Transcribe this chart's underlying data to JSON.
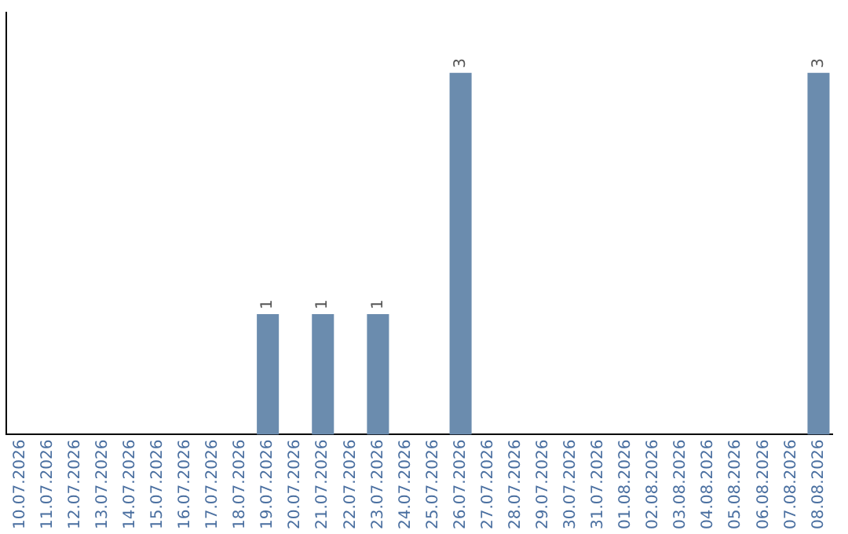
{
  "chart_data": {
    "type": "bar",
    "categories": [
      "10.07.2026",
      "11.07.2026",
      "12.07.2026",
      "13.07.2026",
      "14.07.2026",
      "15.07.2026",
      "16.07.2026",
      "17.07.2026",
      "18.07.2026",
      "19.07.2026",
      "20.07.2026",
      "21.07.2026",
      "22.07.2026",
      "23.07.2026",
      "24.07.2026",
      "25.07.2026",
      "26.07.2026",
      "27.07.2026",
      "28.07.2026",
      "29.07.2026",
      "30.07.2026",
      "31.07.2026",
      "01.08.2026",
      "02.08.2026",
      "03.08.2026",
      "04.08.2026",
      "05.08.2026",
      "06.08.2026",
      "07.08.2026",
      "08.08.2026"
    ],
    "values": [
      0,
      0,
      0,
      0,
      0,
      0,
      0,
      0,
      0,
      1,
      0,
      1,
      0,
      1,
      0,
      0,
      3,
      0,
      0,
      0,
      0,
      0,
      0,
      0,
      0,
      0,
      0,
      0,
      0,
      3
    ],
    "value_labels": [
      null,
      null,
      null,
      null,
      null,
      null,
      null,
      null,
      null,
      "1",
      null,
      "1",
      null,
      "1",
      null,
      null,
      "3",
      null,
      null,
      null,
      null,
      null,
      null,
      null,
      null,
      null,
      null,
      null,
      null,
      "3"
    ],
    "color": "#6b8cae",
    "grid": false,
    "legend": false,
    "tick_labels": "x"
  }
}
